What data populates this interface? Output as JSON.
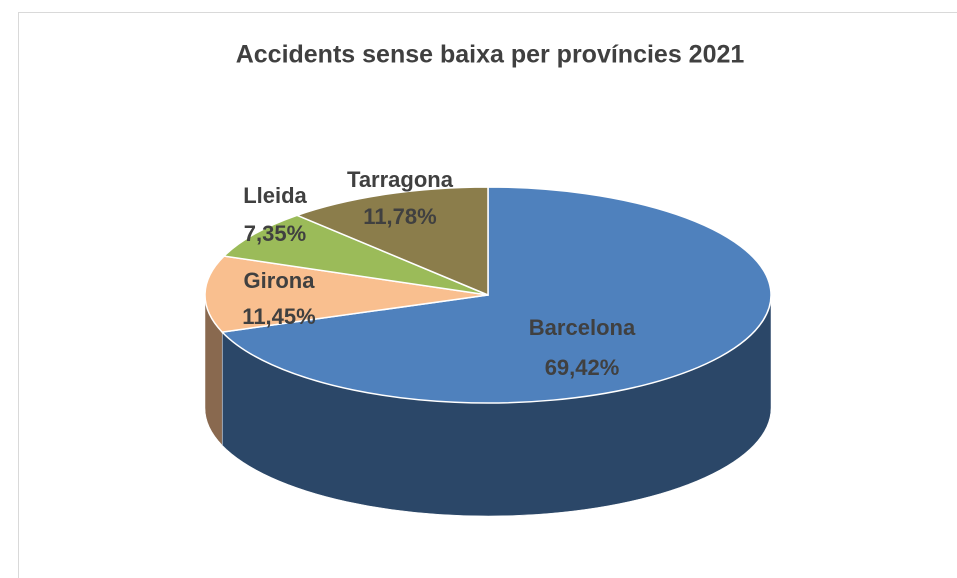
{
  "chart_data": {
    "type": "pie",
    "title": "Accidents sense baixa per províncies 2021",
    "categories": [
      "Barcelona",
      "Girona",
      "Lleida",
      "Tarragona"
    ],
    "values": [
      69.42,
      11.45,
      7.35,
      11.78
    ],
    "value_labels": [
      "69,42%",
      "11,45%",
      "7,35%",
      "11,78%"
    ],
    "colors": [
      "#4f81bd",
      "#f9bf8f",
      "#9bbb59",
      "#8b7d4b"
    ]
  }
}
